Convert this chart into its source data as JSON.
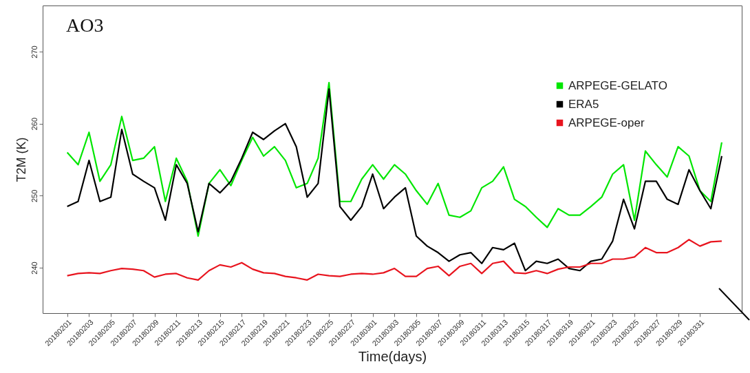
{
  "chart_data": {
    "type": "line",
    "xlabel": "Time(days)",
    "ylabel": "T2M (K)",
    "annotations": [
      "AO3"
    ],
    "legend": "top right",
    "grid": false,
    "xlim": [
      "2018-01-29T18:00",
      "2018-04-03T20:00"
    ],
    "ylim": [
      233.7,
      276.4
    ],
    "yticks": [
      240,
      250,
      260,
      270
    ],
    "xticks": [
      {
        "value": "2018-02-01",
        "label": "20180201"
      },
      {
        "value": "2018-02-03",
        "label": "20180203"
      },
      {
        "value": "2018-02-05",
        "label": "20180205"
      },
      {
        "value": "2018-02-07",
        "label": "20180207"
      },
      {
        "value": "2018-02-09",
        "label": "20180209"
      },
      {
        "value": "2018-02-11",
        "label": "20180211"
      },
      {
        "value": "2018-02-13",
        "label": "20180213"
      },
      {
        "value": "2018-02-15",
        "label": "20180215"
      },
      {
        "value": "2018-02-17",
        "label": "20180217"
      },
      {
        "value": "2018-02-19",
        "label": "20180219"
      },
      {
        "value": "2018-02-21",
        "label": "20180221"
      },
      {
        "value": "2018-02-23",
        "label": "20180223"
      },
      {
        "value": "2018-02-25",
        "label": "20180225"
      },
      {
        "value": "2018-02-27",
        "label": "20180227"
      },
      {
        "value": "2018-03-01",
        "label": "20180301"
      },
      {
        "value": "2018-03-03",
        "label": "20180303"
      },
      {
        "value": "2018-03-05",
        "label": "20180305"
      },
      {
        "value": "2018-03-07",
        "label": "20180307"
      },
      {
        "value": "2018-03-09",
        "label": "20180309"
      },
      {
        "value": "2018-03-11",
        "label": "20180311"
      },
      {
        "value": "2018-03-13",
        "label": "20180313"
      },
      {
        "value": "2018-03-15",
        "label": "20180315"
      },
      {
        "value": "2018-03-17",
        "label": "20180317"
      },
      {
        "value": "2018-03-19",
        "label": "20180319"
      },
      {
        "value": "2018-03-21",
        "label": "20180321"
      },
      {
        "value": "2018-03-23",
        "label": "20180323"
      },
      {
        "value": "2018-03-25",
        "label": "20180325"
      },
      {
        "value": "2018-03-27",
        "label": "20180327"
      },
      {
        "value": "2018-03-29",
        "label": "20180329"
      },
      {
        "value": "2018-03-31",
        "label": "20180331"
      }
    ],
    "x": [
      "2018-02-01",
      "2018-02-02",
      "2018-02-03",
      "2018-02-04",
      "2018-02-05",
      "2018-02-06",
      "2018-02-07",
      "2018-02-08",
      "2018-02-09",
      "2018-02-10",
      "2018-02-11",
      "2018-02-12",
      "2018-02-13",
      "2018-02-14",
      "2018-02-15",
      "2018-02-16",
      "2018-02-17",
      "2018-02-18",
      "2018-02-19",
      "2018-02-20",
      "2018-02-21",
      "2018-02-22",
      "2018-02-23",
      "2018-02-24",
      "2018-02-25",
      "2018-02-26",
      "2018-02-27",
      "2018-02-28",
      "2018-03-01",
      "2018-03-02",
      "2018-03-03",
      "2018-03-04",
      "2018-03-05",
      "2018-03-06",
      "2018-03-07",
      "2018-03-08",
      "2018-03-09",
      "2018-03-10",
      "2018-03-11",
      "2018-03-12",
      "2018-03-13",
      "2018-03-14",
      "2018-03-15",
      "2018-03-16",
      "2018-03-17",
      "2018-03-18",
      "2018-03-19",
      "2018-03-20",
      "2018-03-21",
      "2018-03-22",
      "2018-03-23",
      "2018-03-24",
      "2018-03-25",
      "2018-03-26",
      "2018-03-27",
      "2018-03-28",
      "2018-03-29",
      "2018-03-30",
      "2018-03-31",
      "2018-04-01",
      "2018-04-02"
    ],
    "series": [
      {
        "name": "ARPEGE-GELATO",
        "color": "#00e600",
        "values": [
          256.0,
          254.3,
          258.8,
          252.0,
          254.3,
          261.0,
          254.9,
          255.2,
          256.8,
          249.2,
          255.2,
          252.0,
          244.4,
          251.7,
          253.6,
          251.4,
          254.9,
          258.1,
          255.5,
          256.8,
          254.9,
          251.1,
          251.7,
          255.2,
          265.7,
          249.2,
          249.2,
          252.3,
          254.3,
          252.3,
          254.3,
          253.0,
          250.7,
          248.8,
          251.7,
          247.3,
          247.0,
          247.9,
          251.1,
          252.0,
          254.0,
          249.5,
          248.5,
          247.0,
          245.6,
          248.2,
          247.3,
          247.3,
          248.5,
          249.8,
          253.0,
          254.3,
          246.6,
          256.2,
          254.3,
          252.6,
          256.8,
          255.5,
          250.7,
          249.2,
          257.4
        ]
      },
      {
        "name": "ERA5",
        "color": "#000000",
        "values": [
          248.5,
          249.2,
          254.9,
          249.2,
          249.8,
          259.2,
          253.0,
          252.0,
          251.1,
          246.6,
          254.3,
          251.7,
          245.0,
          251.7,
          250.4,
          252.0,
          255.2,
          258.8,
          257.8,
          259.0,
          260.0,
          256.8,
          249.8,
          251.7,
          264.8,
          248.5,
          246.6,
          248.5,
          253.0,
          248.2,
          249.8,
          251.1,
          244.4,
          243.0,
          242.1,
          240.9,
          241.8,
          242.1,
          240.6,
          242.8,
          242.5,
          243.4,
          239.6,
          240.9,
          240.6,
          241.2,
          239.9,
          239.6,
          240.9,
          241.2,
          243.7,
          249.5,
          245.4,
          252.0,
          252.0,
          249.5,
          248.8,
          253.6,
          250.7,
          248.2,
          255.5
        ]
      },
      {
        "name": "ARPEGE-oper",
        "color": "#e8141e",
        "values": [
          238.9,
          239.2,
          239.3,
          239.2,
          239.6,
          239.9,
          239.8,
          239.6,
          238.7,
          239.1,
          239.2,
          238.6,
          238.3,
          239.6,
          240.4,
          240.1,
          240.7,
          239.8,
          239.3,
          239.2,
          238.8,
          238.6,
          238.3,
          239.1,
          238.9,
          238.8,
          239.1,
          239.2,
          239.1,
          239.3,
          239.9,
          238.8,
          238.8,
          239.9,
          240.2,
          238.9,
          240.2,
          240.6,
          239.2,
          240.6,
          240.9,
          239.3,
          239.2,
          239.6,
          239.2,
          239.8,
          240.1,
          240.1,
          240.6,
          240.6,
          241.2,
          241.2,
          241.5,
          242.8,
          242.1,
          242.1,
          242.8,
          243.9,
          243.0,
          243.6,
          243.7
        ]
      }
    ]
  }
}
